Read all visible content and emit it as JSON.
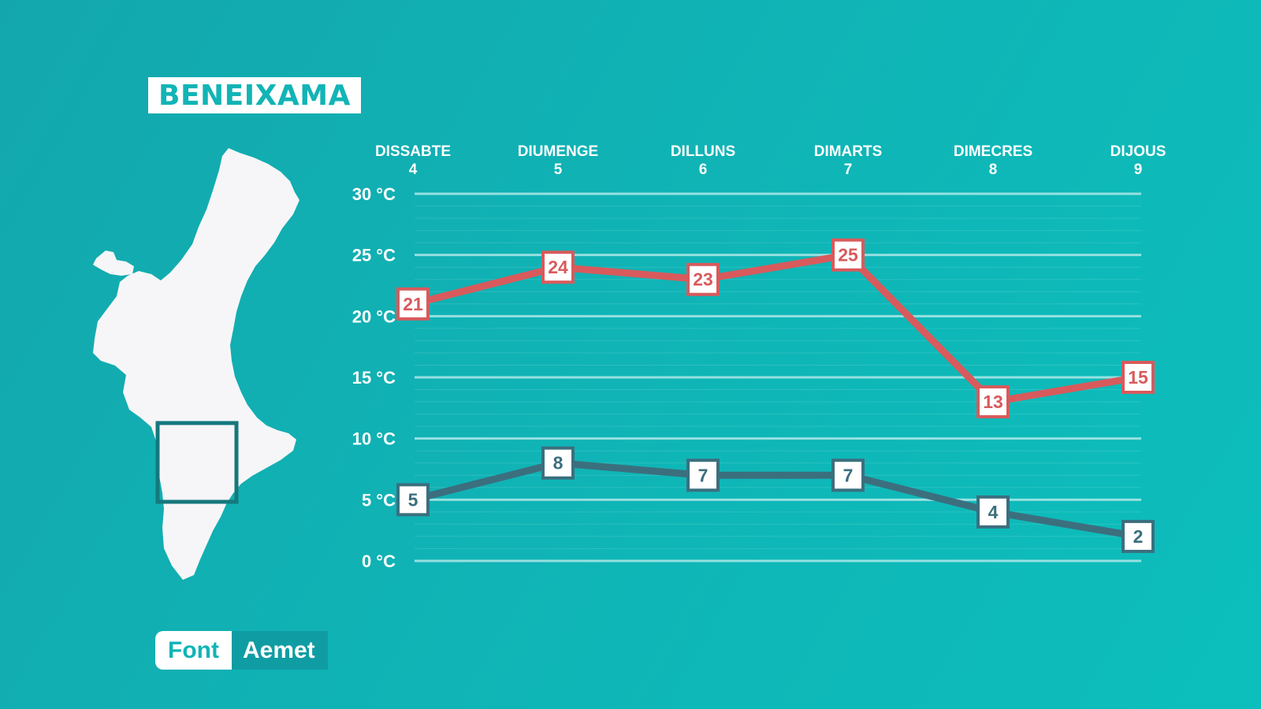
{
  "location": {
    "name": "BENEIXAMA"
  },
  "source": {
    "label": "Font",
    "value": "Aemet"
  },
  "colors": {
    "max": "#d85a5c",
    "min": "#3b6f7e",
    "background": "#10b3b5"
  },
  "chart_data": {
    "type": "line",
    "title": "BENEIXAMA",
    "days": [
      {
        "name": "DISSABTE",
        "num": "4"
      },
      {
        "name": "DIUMENGE",
        "num": "5"
      },
      {
        "name": "DILLUNS",
        "num": "6"
      },
      {
        "name": "DIMARTS",
        "num": "7"
      },
      {
        "name": "DIMECRES",
        "num": "8"
      },
      {
        "name": "DIJOUS",
        "num": "9"
      }
    ],
    "y_ticks": [
      "30 °C",
      "25 °C",
      "20 °C",
      "15 °C",
      "10 °C",
      "5 °C",
      "0 °C"
    ],
    "y_tick_values": [
      30,
      25,
      20,
      15,
      10,
      5,
      0
    ],
    "ylim": [
      0,
      30
    ],
    "series": [
      {
        "name": "max",
        "values": [
          21,
          24,
          23,
          25,
          13,
          15
        ]
      },
      {
        "name": "min",
        "values": [
          5,
          8,
          7,
          7,
          4,
          2
        ]
      }
    ]
  }
}
